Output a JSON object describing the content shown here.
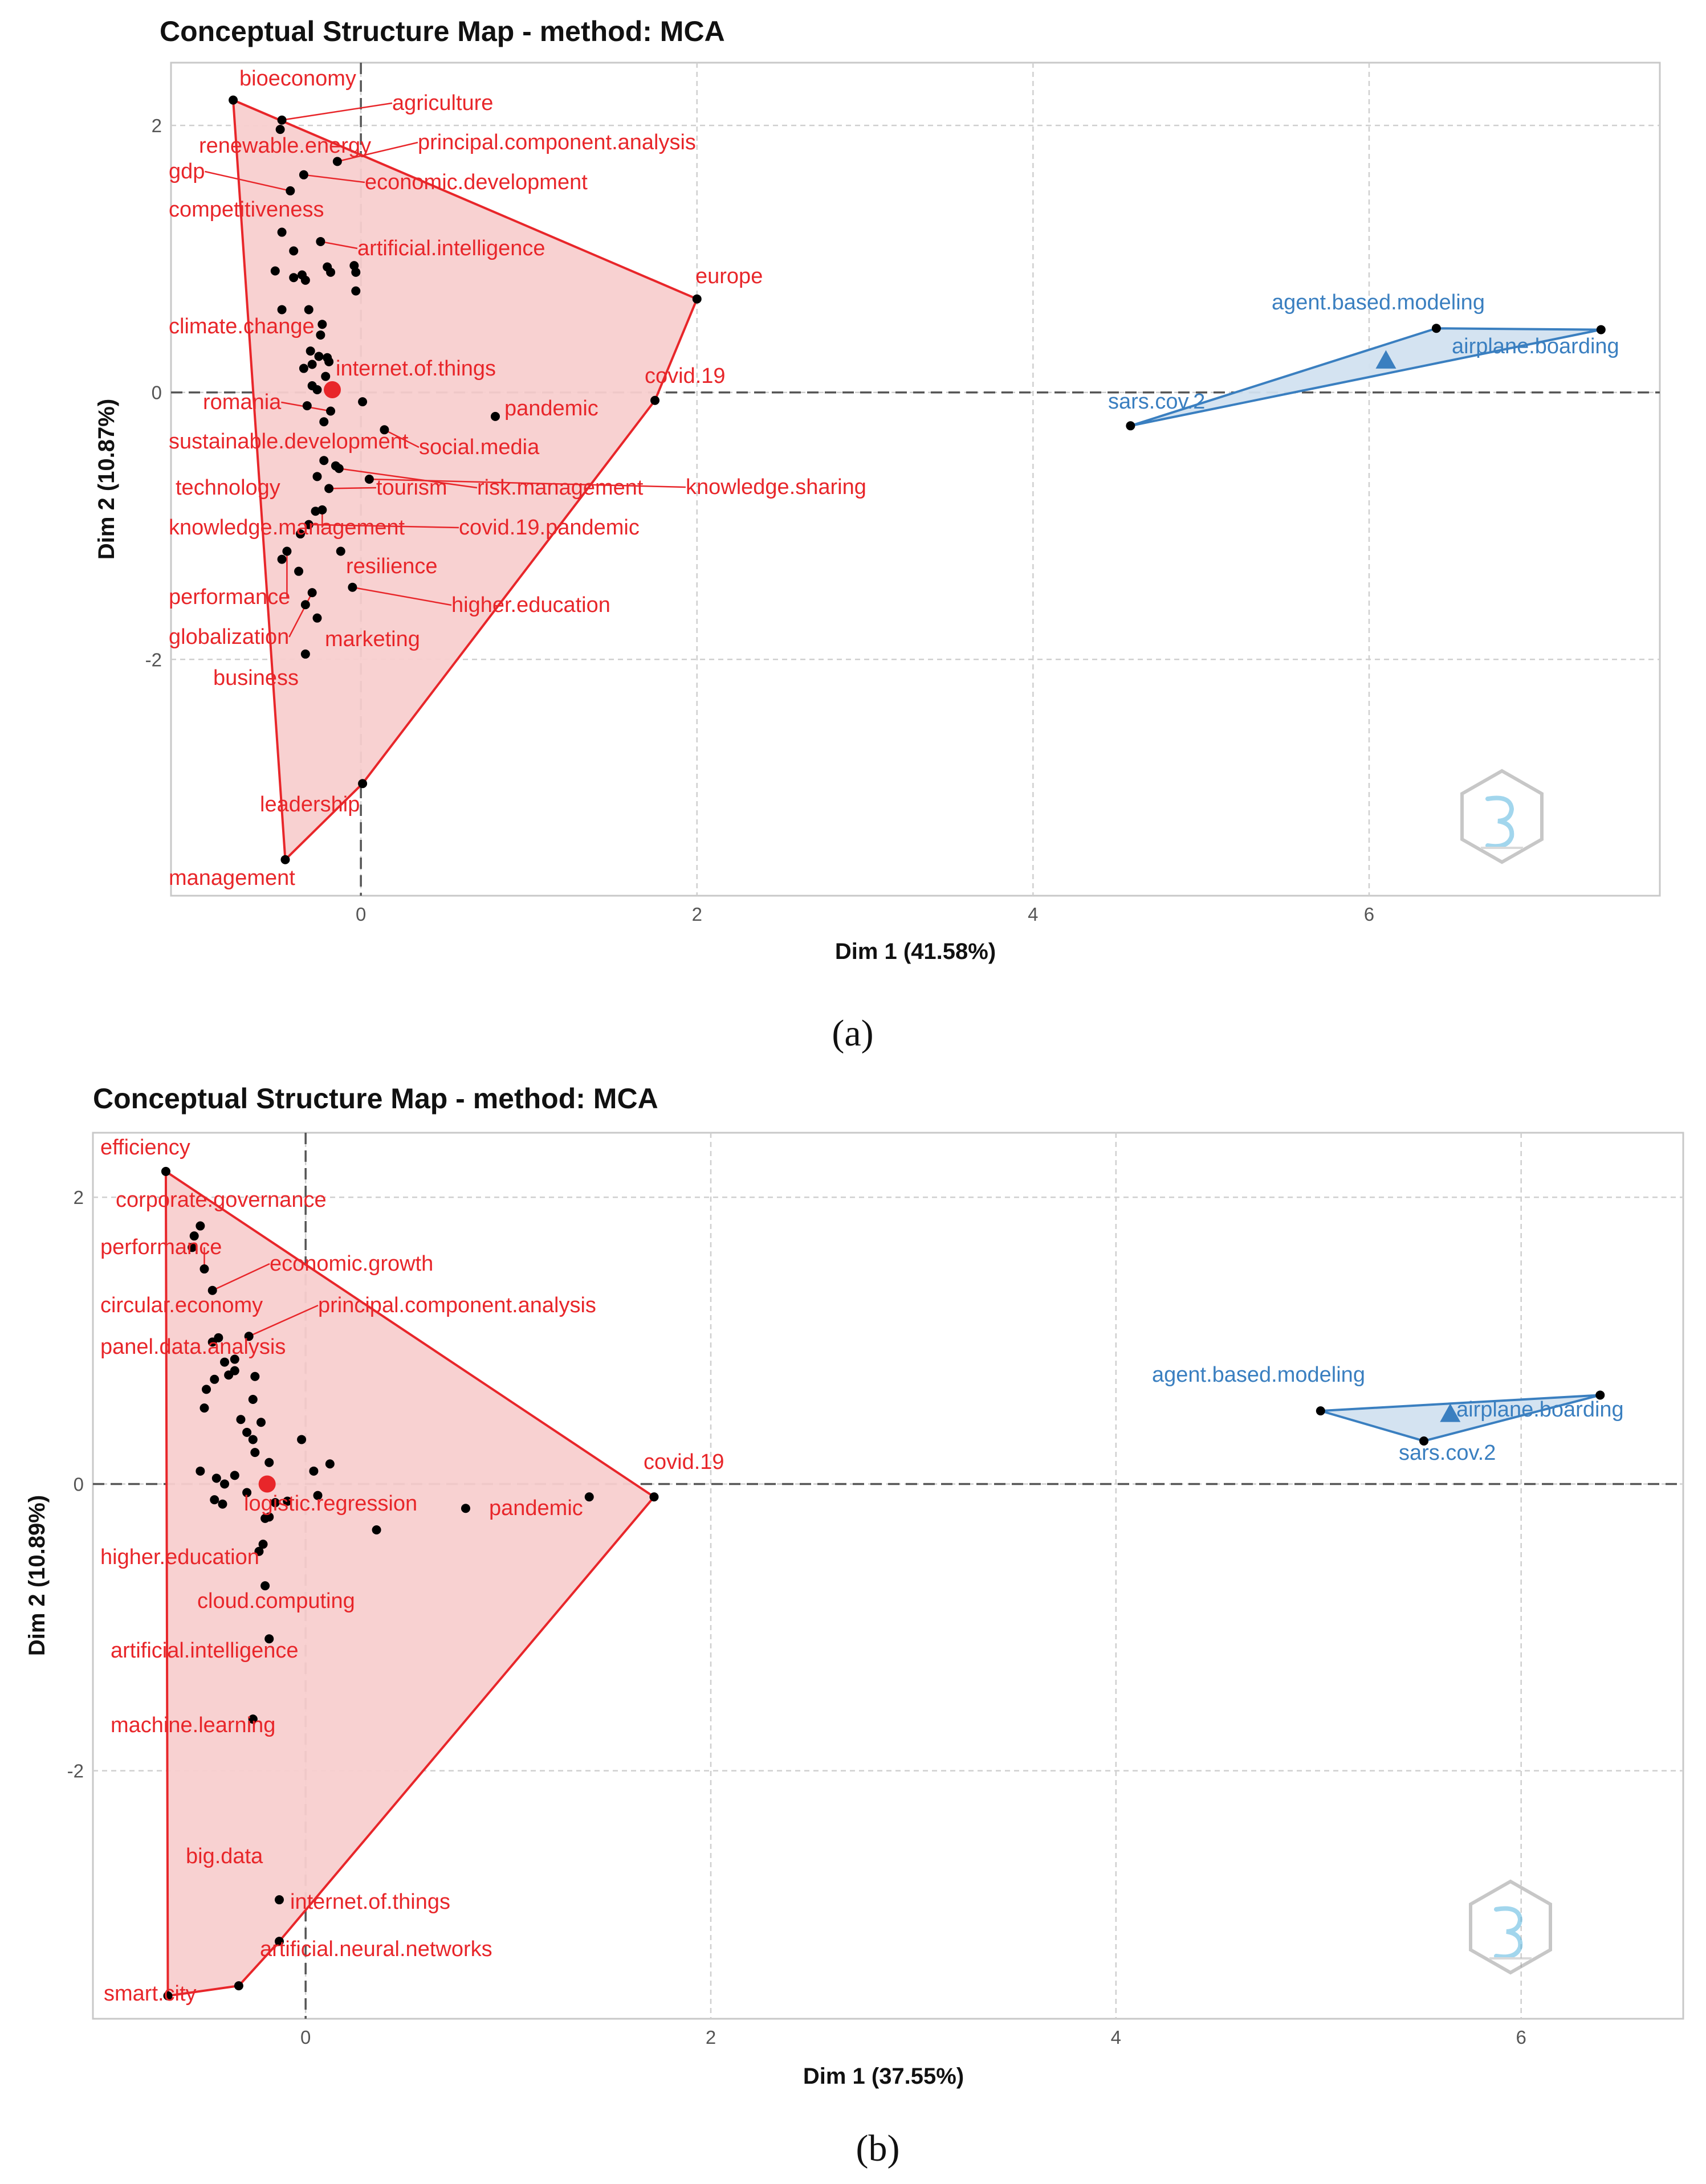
{
  "chart_data": [
    {
      "type": "scatter",
      "panel_label": "(a)",
      "title": "Conceptual Structure Map - method: MCA",
      "xlabel": "Dim 1 (41.58%)",
      "ylabel": "Dim 2 (10.87%)",
      "xlim": [
        -1.13,
        7.73
      ],
      "ylim": [
        -3.77,
        2.47
      ],
      "xticks": [
        0,
        2,
        4,
        6
      ],
      "yticks": [
        -2,
        0,
        2
      ],
      "grid": true,
      "clusters": [
        {
          "name": "cluster-1",
          "color": "#e8262a",
          "fill": "#f8cfcf",
          "centroid": [
            -0.17,
            0.02
          ],
          "hull": [
            [
              -0.76,
              2.19
            ],
            [
              2.0,
              0.7
            ],
            [
              1.75,
              -0.06
            ],
            [
              0.01,
              -2.93
            ],
            [
              -0.45,
              -3.5
            ]
          ],
          "points": [
            {
              "label": "bioeconomy",
              "x": -0.76,
              "y": 2.19
            },
            {
              "label": "agriculture",
              "x": -0.47,
              "y": 2.04
            },
            {
              "label": "principal.component.analysis",
              "x": -0.14,
              "y": 1.73
            },
            {
              "label": "economic.development",
              "x": -0.34,
              "y": 1.63
            },
            {
              "label": "gdp",
              "x": -0.42,
              "y": 1.51
            },
            {
              "label": "renewable.energy",
              "x": -0.48,
              "y": 1.97
            },
            {
              "label": "competitiveness",
              "x": -0.47,
              "y": 1.2
            },
            {
              "label": "artificial.intelligence",
              "x": -0.24,
              "y": 1.13
            },
            {
              "label": "europe",
              "x": 2.0,
              "y": 0.7
            },
            {
              "label": "climate.change",
              "x": -0.3,
              "y": 0.31
            },
            {
              "label": "internet.of.things",
              "x": 0.01,
              "y": -0.07
            },
            {
              "label": "covid.19",
              "x": 1.75,
              "y": -0.06
            },
            {
              "label": "romania",
              "x": -0.18,
              "y": -0.14
            },
            {
              "label": "pandemic",
              "x": 0.8,
              "y": -0.18
            },
            {
              "label": "social.media",
              "x": 0.14,
              "y": -0.28
            },
            {
              "label": "sustainable.development",
              "x": -0.15,
              "y": -0.55
            },
            {
              "label": "tourism",
              "x": -0.19,
              "y": -0.72
            },
            {
              "label": "risk.management",
              "x": -0.13,
              "y": -0.57
            },
            {
              "label": "knowledge.sharing",
              "x": 0.05,
              "y": -0.65
            },
            {
              "label": "technology",
              "x": -0.26,
              "y": -0.63
            },
            {
              "label": "knowledge.management",
              "x": -0.23,
              "y": -0.88
            },
            {
              "label": "covid.19.pandemic",
              "x": -0.31,
              "y": -0.99
            },
            {
              "label": "resilience",
              "x": -0.12,
              "y": -1.19
            },
            {
              "label": "performance",
              "x": -0.44,
              "y": -1.19
            },
            {
              "label": "higher.education",
              "x": -0.05,
              "y": -1.46
            },
            {
              "label": "globalization",
              "x": -0.29,
              "y": -1.5
            },
            {
              "label": "marketing",
              "x": -0.26,
              "y": -1.69
            },
            {
              "label": "business",
              "x": -0.33,
              "y": -1.96
            },
            {
              "label": "leadership",
              "x": 0.01,
              "y": -2.93
            },
            {
              "label": "management",
              "x": -0.45,
              "y": -3.5
            }
          ],
          "extra_points": [
            [
              -0.51,
              0.91
            ],
            [
              -0.47,
              0.62
            ],
            [
              -0.4,
              1.06
            ],
            [
              -0.4,
              0.86
            ],
            [
              -0.35,
              0.88
            ],
            [
              -0.33,
              0.84
            ],
            [
              -0.2,
              0.94
            ],
            [
              -0.18,
              0.9
            ],
            [
              -0.04,
              0.95
            ],
            [
              -0.03,
              0.9
            ],
            [
              -0.03,
              0.76
            ],
            [
              -0.31,
              0.62
            ],
            [
              -0.23,
              0.51
            ],
            [
              -0.24,
              0.43
            ],
            [
              -0.34,
              0.18
            ],
            [
              -0.29,
              0.21
            ],
            [
              -0.25,
              0.27
            ],
            [
              -0.19,
              0.23
            ],
            [
              -0.2,
              0.26
            ],
            [
              -0.21,
              0.12
            ],
            [
              -0.29,
              0.05
            ],
            [
              -0.26,
              0.02
            ],
            [
              -0.32,
              -0.1
            ],
            [
              -0.22,
              -0.22
            ],
            [
              -0.22,
              -0.51
            ],
            [
              -0.27,
              -0.89
            ],
            [
              -0.36,
              -1.06
            ],
            [
              -0.37,
              -1.34
            ],
            [
              -0.33,
              -1.59
            ],
            [
              -0.47,
              -1.25
            ]
          ]
        },
        {
          "name": "cluster-2",
          "color": "#3a7fc0",
          "fill": "#d2e1f0",
          "centroid": [
            6.1,
            0.24
          ],
          "hull": [
            [
              4.58,
              -0.25
            ],
            [
              6.4,
              0.48
            ],
            [
              7.38,
              0.47
            ]
          ],
          "points": [
            {
              "label": "agent.based.modeling",
              "x": 6.4,
              "y": 0.48
            },
            {
              "label": "airplane.boarding",
              "x": 7.38,
              "y": 0.47
            },
            {
              "label": "sars.cov.2",
              "x": 4.58,
              "y": -0.25
            }
          ]
        }
      ]
    },
    {
      "type": "scatter",
      "panel_label": "(b)",
      "title": "Conceptual Structure Map - method: MCA",
      "xlabel": "Dim 1 (37.55%)",
      "ylabel": "Dim 2 (10.89%)",
      "xlim": [
        -1.05,
        6.8
      ],
      "ylim": [
        -3.73,
        2.45
      ],
      "xticks": [
        0,
        2,
        4,
        6
      ],
      "yticks": [
        -2,
        0,
        2
      ],
      "grid": true,
      "clusters": [
        {
          "name": "cluster-1",
          "color": "#e8262a",
          "fill": "#f8cfcf",
          "centroid": [
            -0.19,
            0.0
          ],
          "hull": [
            [
              -0.69,
              2.18
            ],
            [
              1.72,
              -0.09
            ],
            [
              -0.13,
              -3.19
            ],
            [
              -0.33,
              -3.5
            ],
            [
              -0.68,
              -3.57
            ]
          ],
          "points": [
            {
              "label": "efficiency",
              "x": -0.69,
              "y": 2.18
            },
            {
              "label": "corporate.governance",
              "x": -0.52,
              "y": 1.8
            },
            {
              "label": "performance",
              "x": -0.5,
              "y": 1.5
            },
            {
              "label": "economic.growth",
              "x": -0.46,
              "y": 1.35
            },
            {
              "label": "principal.component.analysis",
              "x": -0.28,
              "y": 1.03
            },
            {
              "label": "circular.economy",
              "x": -0.43,
              "y": 1.02
            },
            {
              "label": "panel.data.analysis",
              "x": -0.35,
              "y": 0.87
            },
            {
              "label": "covid.19",
              "x": 1.72,
              "y": -0.09
            },
            {
              "label": "logistic.regression",
              "x": -0.2,
              "y": -0.24
            },
            {
              "label": "pandemic",
              "x": 0.79,
              "y": -0.17
            },
            {
              "label": "higher.education",
              "x": -0.2,
              "y": -0.71
            },
            {
              "label": "cloud.computing",
              "x": -0.18,
              "y": -1.08
            },
            {
              "label": "artificial.intelligence",
              "x": -0.26,
              "y": -1.64
            },
            {
              "label": "machine.learning",
              "x": -0.26,
              "y": -1.64
            },
            {
              "label": "big.data",
              "x": -0.13,
              "y": -2.9
            },
            {
              "label": "internet.of.things",
              "x": -0.13,
              "y": -3.19
            },
            {
              "label": "artificial.neural.networks",
              "x": -0.33,
              "y": -3.5
            },
            {
              "label": "smart.city",
              "x": -0.68,
              "y": -3.57
            }
          ],
          "extra_points": [
            [
              -0.55,
              1.73
            ],
            [
              -0.56,
              1.65
            ],
            [
              -0.46,
              0.99
            ],
            [
              -0.4,
              0.85
            ],
            [
              -0.35,
              0.79
            ],
            [
              -0.38,
              0.76
            ],
            [
              -0.25,
              0.75
            ],
            [
              -0.45,
              0.73
            ],
            [
              -0.49,
              0.66
            ],
            [
              -0.26,
              0.59
            ],
            [
              -0.5,
              0.53
            ],
            [
              -0.32,
              0.45
            ],
            [
              -0.22,
              0.43
            ],
            [
              -0.29,
              0.36
            ],
            [
              -0.26,
              0.31
            ],
            [
              -0.02,
              0.31
            ],
            [
              -0.25,
              0.22
            ],
            [
              -0.18,
              0.15
            ],
            [
              0.12,
              0.14
            ],
            [
              -0.52,
              0.09
            ],
            [
              0.04,
              0.09
            ],
            [
              -0.35,
              0.06
            ],
            [
              -0.44,
              0.04
            ],
            [
              -0.4,
              0.0
            ],
            [
              -0.29,
              -0.06
            ],
            [
              0.06,
              -0.08
            ],
            [
              -0.45,
              -0.11
            ],
            [
              -0.41,
              -0.14
            ],
            [
              -0.15,
              -0.13
            ],
            [
              -0.09,
              -0.12
            ],
            [
              -0.18,
              -0.23
            ],
            [
              0.35,
              -0.32
            ],
            [
              1.4,
              -0.09
            ],
            [
              -0.21,
              -0.42
            ],
            [
              -0.23,
              -0.47
            ]
          ]
        },
        {
          "name": "cluster-2",
          "color": "#3a7fc0",
          "fill": "#d2e1f0",
          "centroid": [
            5.65,
            0.49
          ],
          "hull": [
            [
              5.01,
              0.51
            ],
            [
              6.39,
              0.62
            ],
            [
              5.52,
              0.3
            ]
          ],
          "points": [
            {
              "label": "agent.based.modeling",
              "x": 5.01,
              "y": 0.51
            },
            {
              "label": "airplane.boarding",
              "x": 6.39,
              "y": 0.62
            },
            {
              "label": "sars.cov.2",
              "x": 5.52,
              "y": 0.3
            }
          ]
        }
      ]
    }
  ]
}
